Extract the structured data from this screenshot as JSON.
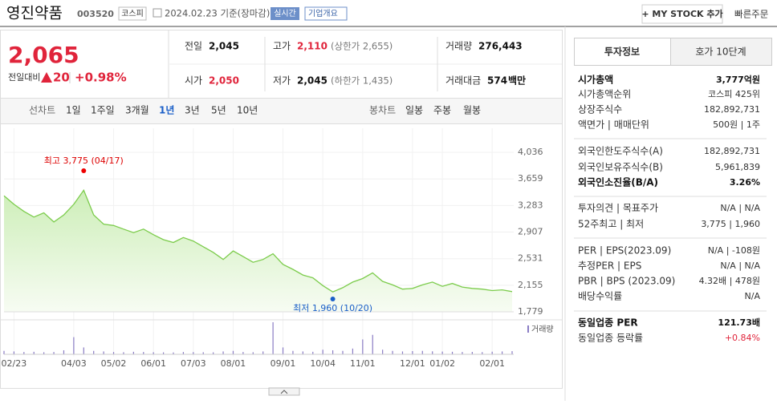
{
  "header": {
    "title": "영진약품",
    "code": "003520",
    "market": "코스피",
    "date": "2024.02.23 기준(장마감)",
    "realtime": "실시간",
    "overview": "기업개요",
    "my_stock": "+ MY STOCK 추가",
    "quick_order": "빠른주문"
  },
  "price": {
    "current": "2,065",
    "change_label": "전일대비",
    "change": "20",
    "change_rate": "+0.98%"
  },
  "stats": [
    {
      "label": "전일",
      "value": "2,045"
    },
    {
      "label": "고가",
      "value": "2,110",
      "note": "(상한가 2,655)"
    },
    {
      "label": "거래량",
      "value": "276,443"
    },
    {
      "label": "시가",
      "value": "2,050"
    },
    {
      "label": "저가",
      "value": "2,045",
      "note": "(하한가 1,435)"
    },
    {
      "label": "거래대금",
      "value": "574",
      "unit": "백만"
    }
  ],
  "tabs": {
    "line_label": "선차트",
    "line": [
      "1일",
      "1주일",
      "3개월",
      "1년",
      "3년",
      "5년",
      "10년"
    ],
    "candle_label": "봉차트",
    "candle": [
      "일봉",
      "주봉",
      "월봉"
    ]
  },
  "chart": {
    "type": "line",
    "color": "#7ccc4c",
    "grid": true,
    "categories": [
      null,
      "02/23",
      null,
      null,
      null,
      null,
      null,
      "04/03",
      null,
      null,
      null,
      "05/02",
      null,
      null,
      null,
      "06/01",
      null,
      null,
      null,
      "07/03",
      null,
      null,
      null,
      "08/01",
      null,
      null,
      null,
      null,
      "09/01",
      null,
      null,
      null,
      "10/04",
      null,
      null,
      null,
      "11/01",
      null,
      null,
      null,
      null,
      "12/01",
      null,
      null,
      "01/02",
      null,
      null,
      null,
      null,
      "02/01",
      null,
      null
    ],
    "values": [
      3420,
      3300,
      3200,
      3120,
      3180,
      3050,
      3150,
      3300,
      3500,
      3150,
      3020,
      3000,
      2950,
      2900,
      2950,
      2870,
      2800,
      2760,
      2830,
      2780,
      2700,
      2620,
      2520,
      2640,
      2560,
      2480,
      2520,
      2600,
      2450,
      2380,
      2300,
      2260,
      2150,
      2060,
      2120,
      2200,
      2250,
      2330,
      2210,
      2160,
      2100,
      2110,
      2160,
      2200,
      2140,
      2180,
      2130,
      2110,
      2100,
      2080,
      2090,
      2065
    ],
    "ylim": [
      1779,
      4036
    ],
    "yticks": [
      {
        "value": 4036,
        "label": "4,036"
      },
      {
        "value": 3659,
        "label": "3,659"
      },
      {
        "value": 3283,
        "label": "3,283"
      },
      {
        "value": 2907,
        "label": "2,907"
      },
      {
        "value": 2531,
        "label": "2,531"
      },
      {
        "value": 2155,
        "label": "2,155"
      },
      {
        "value": 1779,
        "label": "1,779"
      }
    ],
    "high": 3775,
    "high_label": "최고 3,775 (04/17)",
    "low": 1960,
    "low_label": "최저 1,960 (10/20)",
    "volume": {
      "label": "거래량",
      "color": "#8a7cc4",
      "values": [
        300000,
        250000,
        200000,
        220000,
        180000,
        200000,
        350000,
        1500000,
        600000,
        300000,
        250000,
        200000,
        180000,
        220000,
        200000,
        180000,
        170000,
        160000,
        200000,
        190000,
        180000,
        170000,
        250000,
        300000,
        200000,
        180000,
        250000,
        2800000,
        600000,
        300000,
        250000,
        220000,
        400000,
        350000,
        300000,
        500000,
        1300000,
        1700000,
        400000,
        300000,
        250000,
        280000,
        300000,
        260000,
        240000,
        220000,
        200000,
        210000,
        190000,
        230000,
        250000,
        276443
      ]
    }
  },
  "invest": {
    "tabs": [
      "투자정보",
      "호가 10단계"
    ],
    "groups": [
      [
        [
          "시가총액",
          "3,777억원"
        ],
        [
          "시가총액순위",
          "코스피 425위"
        ],
        [
          "상장주식수",
          "182,892,731"
        ],
        [
          "액면가 | 매매단위",
          "500원 | 1주"
        ]
      ],
      [
        [
          "외국인한도주식수(A)",
          "182,892,731"
        ],
        [
          "외국인보유주식수(B)",
          "5,961,839"
        ],
        [
          "외국인소진율(B/A)",
          "3.26%"
        ]
      ],
      [
        [
          "투자의견 | 목표주가",
          "N/A | N/A"
        ],
        [
          "52주최고 | 최저",
          "3,775 | 1,960"
        ]
      ],
      [
        [
          "PER | EPS(2023.09)",
          "N/A | -108원"
        ],
        [
          "추정PER | EPS",
          "N/A | N/A"
        ],
        [
          "PBR | BPS (2023.09)",
          "4.32배 | 478원"
        ],
        [
          "배당수익률",
          "N/A"
        ]
      ],
      [
        [
          "동일업종 PER",
          "121.73배"
        ],
        [
          "동일업종 등락률",
          "+0.84%"
        ]
      ]
    ]
  }
}
